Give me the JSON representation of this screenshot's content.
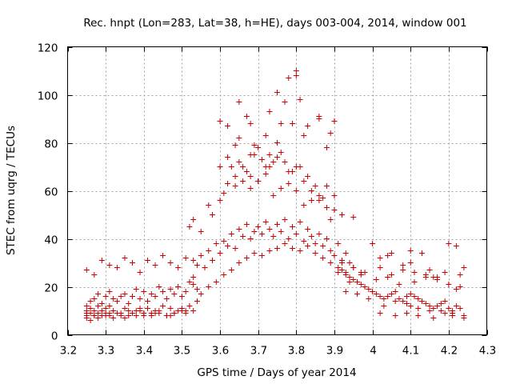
{
  "chart_data": {
    "type": "scatter",
    "title": "Rec. hnpt (Lon=283, Lat=38, h=HE), days 003-004, 2014, window 001",
    "xlabel": "GPS time / Days of year 2014",
    "ylabel": "STEC from uqrg / TECUs",
    "xlim": [
      3.2,
      4.3
    ],
    "ylim": [
      0,
      120
    ],
    "xticks": [
      "3.2",
      "3.3",
      "3.4",
      "3.5",
      "3.6",
      "3.7",
      "3.8",
      "3.9",
      "4",
      "4.1",
      "4.2",
      "4.3"
    ],
    "xtick_values": [
      3.2,
      3.3,
      3.4,
      3.5,
      3.6,
      3.7,
      3.8,
      3.9,
      4.0,
      4.1,
      4.2,
      4.3
    ],
    "yticks": [
      "0",
      "20",
      "40",
      "60",
      "80",
      "100",
      "120"
    ],
    "ytick_values": [
      0,
      20,
      40,
      60,
      80,
      100,
      120
    ],
    "grid": true,
    "marker": "plus",
    "color": "#cc0000",
    "series": [
      {
        "name": "STEC",
        "x": [
          3.25,
          3.25,
          3.25,
          3.25,
          3.26,
          3.26,
          3.27,
          3.27,
          3.28,
          3.28,
          3.29,
          3.29,
          3.3,
          3.3,
          3.31,
          3.31,
          3.32,
          3.33,
          3.34,
          3.35,
          3.36,
          3.37,
          3.38,
          3.39,
          3.4,
          3.41,
          3.42,
          3.43,
          3.44,
          3.45,
          3.46,
          3.47,
          3.48,
          3.49,
          3.5,
          3.51,
          3.52,
          3.53,
          3.26,
          3.28,
          3.3,
          3.32,
          3.34,
          3.36,
          3.38,
          3.4,
          3.42,
          3.44,
          3.46,
          3.48,
          3.5,
          3.52,
          3.54,
          3.27,
          3.31,
          3.35,
          3.39,
          3.43,
          3.47,
          3.51,
          3.25,
          3.26,
          3.27,
          3.28,
          3.29,
          3.3,
          3.31,
          3.32,
          3.33,
          3.34,
          3.35,
          3.36,
          3.37,
          3.38,
          3.39,
          3.4,
          3.41,
          3.42,
          3.43,
          3.44,
          3.45,
          3.46,
          3.47,
          3.48,
          3.49,
          3.5,
          3.51,
          3.52,
          3.53,
          3.54,
          3.25,
          3.27,
          3.29,
          3.31,
          3.33,
          3.35,
          3.37,
          3.39,
          3.41,
          3.43,
          3.45,
          3.47,
          3.49,
          3.51,
          3.53,
          3.53,
          3.54,
          3.55,
          3.56,
          3.57,
          3.58,
          3.59,
          3.6,
          3.61,
          3.62,
          3.63,
          3.64,
          3.65,
          3.66,
          3.67,
          3.68,
          3.69,
          3.7,
          3.71,
          3.72,
          3.73,
          3.74,
          3.75,
          3.76,
          3.77,
          3.78,
          3.79,
          3.8,
          3.81,
          3.82,
          3.83,
          3.84,
          3.85,
          3.86,
          3.87,
          3.88,
          3.89,
          3.9,
          3.91,
          3.92,
          3.93,
          3.94,
          3.95,
          3.55,
          3.57,
          3.59,
          3.61,
          3.63,
          3.65,
          3.67,
          3.69,
          3.71,
          3.73,
          3.75,
          3.77,
          3.79,
          3.81,
          3.83,
          3.85,
          3.87,
          3.89,
          3.91,
          3.93,
          3.52,
          3.55,
          3.58,
          3.6,
          3.62,
          3.64,
          3.66,
          3.68,
          3.7,
          3.72,
          3.74,
          3.76,
          3.78,
          3.8,
          3.82,
          3.84,
          3.86,
          3.88,
          3.9,
          3.92,
          3.53,
          3.57,
          3.61,
          3.63,
          3.65,
          3.67,
          3.69,
          3.71,
          3.73,
          3.75,
          3.77,
          3.79,
          3.81,
          3.83,
          3.85,
          3.87,
          3.89,
          3.6,
          3.62,
          3.64,
          3.66,
          3.68,
          3.7,
          3.72,
          3.74,
          3.76,
          3.78,
          3.8,
          3.82,
          3.84,
          3.86,
          3.88,
          3.9,
          3.6,
          3.64,
          3.65,
          3.67,
          3.68,
          3.69,
          3.72,
          3.73,
          3.75,
          3.76,
          3.78,
          3.79,
          3.8,
          3.81,
          3.82,
          3.86,
          3.88,
          3.89,
          3.9,
          3.62,
          3.65,
          3.68,
          3.7,
          3.73,
          3.75,
          3.77,
          3.8,
          3.83,
          3.86,
          3.91,
          3.92,
          3.93,
          3.94,
          3.95,
          3.96,
          3.97,
          3.98,
          3.99,
          4.0,
          4.01,
          4.02,
          4.03,
          4.04,
          4.05,
          4.06,
          4.07,
          4.08,
          4.09,
          4.1,
          4.11,
          4.12,
          4.13,
          4.14,
          4.15,
          4.16,
          4.17,
          4.18,
          4.19,
          4.2,
          4.21,
          4.22,
          4.23,
          3.92,
          3.95,
          3.98,
          4.02,
          4.05,
          4.08,
          4.11,
          4.14,
          4.17,
          4.2,
          4.23,
          3.94,
          3.97,
          4.04,
          4.1,
          4.16,
          4.22,
          3.93,
          3.96,
          3.99,
          4.03,
          4.06,
          4.09,
          4.1,
          4.12,
          4.15,
          4.18,
          4.21,
          4.24,
          3.95,
          4.0,
          4.02,
          4.05,
          4.08,
          4.1,
          4.13,
          4.15,
          4.2,
          4.22,
          3.97,
          4.01,
          4.04,
          4.07,
          4.11,
          4.14,
          4.17,
          4.19,
          4.23,
          4.24,
          4.02,
          4.06,
          4.09,
          4.12,
          4.16,
          4.19,
          4.21,
          4.24
        ],
        "y": [
          8,
          9,
          10,
          7,
          9,
          11,
          8,
          10,
          9,
          12,
          8,
          10,
          9,
          11,
          8,
          12,
          10,
          9,
          8,
          11,
          10,
          9,
          8,
          10,
          9,
          11,
          8,
          10,
          9,
          12,
          8,
          11,
          9,
          10,
          11,
          9,
          12,
          10,
          6,
          7,
          8,
          7,
          9,
          8,
          10,
          8,
          9,
          10,
          8,
          9,
          10,
          12,
          14,
          8,
          9,
          7,
          11,
          9,
          8,
          10,
          12,
          14,
          15,
          17,
          13,
          16,
          18,
          15,
          14,
          16,
          17,
          13,
          16,
          19,
          15,
          18,
          14,
          17,
          16,
          20,
          18,
          15,
          19,
          17,
          20,
          16,
          18,
          22,
          21,
          19,
          27,
          25,
          31,
          29,
          28,
          32,
          30,
          26,
          31,
          29,
          33,
          30,
          28,
          32,
          31,
          24,
          29,
          33,
          28,
          35,
          31,
          38,
          34,
          39,
          37,
          42,
          36,
          44,
          41,
          46,
          40,
          43,
          45,
          42,
          47,
          44,
          41,
          46,
          43,
          48,
          40,
          45,
          42,
          47,
          39,
          44,
          41,
          38,
          42,
          37,
          40,
          35,
          33,
          38,
          31,
          34,
          30,
          28,
          17,
          20,
          22,
          25,
          27,
          30,
          32,
          34,
          33,
          35,
          36,
          38,
          36,
          35,
          37,
          34,
          32,
          30,
          28,
          26,
          45,
          43,
          50,
          56,
          63,
          62,
          64,
          61,
          64,
          67,
          58,
          61,
          63,
          60,
          54,
          56,
          58,
          53,
          52,
          50,
          48,
          54,
          59,
          70,
          72,
          68,
          75,
          73,
          70,
          74,
          72,
          68,
          70,
          66,
          62,
          57,
          48,
          70,
          74,
          66,
          70,
          66,
          64,
          70,
          72,
          76,
          68,
          70,
          64,
          60,
          56,
          62,
          58,
          89,
          79,
          97,
          91,
          88,
          79,
          83,
          93,
          80,
          88,
          107,
          88,
          108,
          98,
          83,
          90,
          78,
          84,
          89,
          87,
          82,
          75,
          78,
          75,
          101,
          97,
          110,
          87,
          91,
          26,
          27,
          25,
          24,
          23,
          22,
          21,
          20,
          19,
          18,
          17,
          16,
          15,
          16,
          17,
          18,
          15,
          14,
          16,
          17,
          16,
          15,
          14,
          13,
          12,
          11,
          12,
          13,
          14,
          11,
          10,
          12,
          11,
          30,
          28,
          26,
          28,
          25,
          27,
          26,
          24,
          23,
          21,
          20,
          22,
          25,
          33,
          35,
          24,
          19,
          18,
          17,
          15,
          12,
          14,
          13,
          12,
          11,
          10,
          10,
          9,
          8,
          49,
          38,
          32,
          34,
          29,
          30,
          34,
          27,
          38,
          37,
          26,
          23,
          24,
          21,
          22,
          25,
          24,
          26,
          25,
          28,
          9,
          8,
          9,
          8,
          7,
          9,
          8,
          7
        ],
        "color": "#cc0000"
      }
    ]
  }
}
